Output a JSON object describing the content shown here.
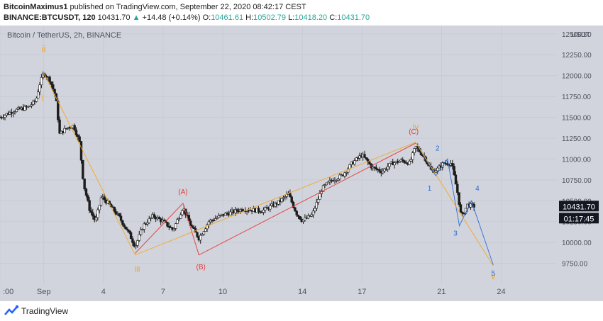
{
  "header": {
    "author": "BitcoinMaximus1",
    "published": "published on TradingView.com, September 22, 2020 08:42:17 CEST",
    "symbol": "BINANCE:BTCUSDT, 120",
    "last": "10431.70",
    "arrow": "▲",
    "change": "+14.48 (+0.14%)",
    "o_label": "O:",
    "o_val": "10461.61",
    "h_label": "H:",
    "h_val": "10502.79",
    "l_label": "L:",
    "l_val": "10418.20",
    "c_label": "C:",
    "c_val": "10431.70"
  },
  "footer": {
    "brand": "TradingView"
  },
  "colors": {
    "background": "#d1d4dc",
    "candle": "#1c1c1c",
    "orange": "#f5a623",
    "red": "#e53935",
    "blue": "#2b6cd4",
    "price_tag": "#131722"
  },
  "chart_data": {
    "type": "candlestick",
    "title": "Bitcoin / TetherUS, 2h, BINANCE",
    "currency": "USDT",
    "ylim": [
      9500,
      12600
    ],
    "y_ticks": [
      9750,
      10000,
      10250,
      10500,
      10750,
      11000,
      11250,
      11500,
      11750,
      12000,
      12250,
      12500
    ],
    "y_tick_labels": [
      "9750.00",
      "10000.00",
      "10250.00",
      "10500.00",
      "10750.00",
      "11000.00",
      "11250.00",
      "11500.00",
      "11750.00",
      "12000.00",
      "12250.00",
      "12500.00"
    ],
    "x_ticks": [
      {
        "label": ":00",
        "day": -1.2
      },
      {
        "label": "Sep",
        "day": 1
      },
      {
        "label": "4",
        "day": 4
      },
      {
        "label": "7",
        "day": 7
      },
      {
        "label": "10",
        "day": 10
      },
      {
        "label": "14",
        "day": 14
      },
      {
        "label": "17",
        "day": 17
      },
      {
        "label": "21",
        "day": 21
      },
      {
        "label": "24",
        "day": 24
      }
    ],
    "last_price": "10431.70",
    "countdown": "01:17:45",
    "price_path": [
      {
        "d": -1.2,
        "p": 11500
      },
      {
        "d": -0.5,
        "p": 11580
      },
      {
        "d": 0.2,
        "p": 11620
      },
      {
        "d": 0.6,
        "p": 11700
      },
      {
        "d": 0.8,
        "p": 11900
      },
      {
        "d": 1.0,
        "p": 12030
      },
      {
        "d": 1.3,
        "p": 11950
      },
      {
        "d": 1.6,
        "p": 11750
      },
      {
        "d": 1.8,
        "p": 11300
      },
      {
        "d": 2.2,
        "p": 11380
      },
      {
        "d": 2.5,
        "p": 11400
      },
      {
        "d": 2.8,
        "p": 11200
      },
      {
        "d": 3.0,
        "p": 10700
      },
      {
        "d": 3.3,
        "p": 10400
      },
      {
        "d": 3.6,
        "p": 10250
      },
      {
        "d": 3.9,
        "p": 10550
      },
      {
        "d": 4.3,
        "p": 10450
      },
      {
        "d": 4.8,
        "p": 10300
      },
      {
        "d": 5.3,
        "p": 10100
      },
      {
        "d": 5.6,
        "p": 9950
      },
      {
        "d": 6.0,
        "p": 10200
      },
      {
        "d": 6.5,
        "p": 10320
      },
      {
        "d": 7.0,
        "p": 10250
      },
      {
        "d": 7.5,
        "p": 10150
      },
      {
        "d": 8.0,
        "p": 10420
      },
      {
        "d": 8.4,
        "p": 10200
      },
      {
        "d": 8.8,
        "p": 10050
      },
      {
        "d": 9.3,
        "p": 10250
      },
      {
        "d": 10.0,
        "p": 10330
      },
      {
        "d": 11.0,
        "p": 10400
      },
      {
        "d": 12.0,
        "p": 10380
      },
      {
        "d": 12.8,
        "p": 10480
      },
      {
        "d": 13.3,
        "p": 10580
      },
      {
        "d": 13.7,
        "p": 10350
      },
      {
        "d": 14.0,
        "p": 10260
      },
      {
        "d": 14.5,
        "p": 10330
      },
      {
        "d": 15.0,
        "p": 10650
      },
      {
        "d": 15.5,
        "p": 10750
      },
      {
        "d": 16.0,
        "p": 10800
      },
      {
        "d": 16.5,
        "p": 10950
      },
      {
        "d": 17.0,
        "p": 11050
      },
      {
        "d": 17.5,
        "p": 10900
      },
      {
        "d": 18.0,
        "p": 10850
      },
      {
        "d": 18.5,
        "p": 10950
      },
      {
        "d": 19.0,
        "p": 10980
      },
      {
        "d": 19.4,
        "p": 10950
      },
      {
        "d": 19.7,
        "p": 11150
      },
      {
        "d": 20.2,
        "p": 11000
      },
      {
        "d": 20.5,
        "p": 10850
      },
      {
        "d": 20.8,
        "p": 10880
      },
      {
        "d": 21.1,
        "p": 10950
      },
      {
        "d": 21.5,
        "p": 10950
      },
      {
        "d": 21.8,
        "p": 10600
      },
      {
        "d": 22.0,
        "p": 10300
      },
      {
        "d": 22.3,
        "p": 10450
      },
      {
        "d": 22.7,
        "p": 10430
      }
    ],
    "waves": [
      {
        "name": "orange",
        "color": "#f5a623",
        "points": [
          {
            "d": 1.0,
            "p": 12030
          },
          {
            "d": 5.6,
            "p": 9850
          },
          {
            "d": 19.7,
            "p": 11200
          }
        ]
      },
      {
        "name": "red",
        "color": "#e53935",
        "points": [
          {
            "d": 5.6,
            "p": 9870
          },
          {
            "d": 8.0,
            "p": 10470
          },
          {
            "d": 8.8,
            "p": 9850
          },
          {
            "d": 19.7,
            "p": 11190
          }
        ]
      },
      {
        "name": "blue",
        "color": "#2b6cd4",
        "points": [
          {
            "d": 19.7,
            "p": 11200
          },
          {
            "d": 20.7,
            "p": 10800
          },
          {
            "d": 21.3,
            "p": 11000
          },
          {
            "d": 21.9,
            "p": 10200
          },
          {
            "d": 22.5,
            "p": 10500
          },
          {
            "d": 23.6,
            "p": 9730
          }
        ]
      },
      {
        "name": "orange-proj",
        "color": "#f5a623",
        "points": [
          {
            "d": 19.7,
            "p": 11200
          },
          {
            "d": 23.6,
            "p": 9720
          }
        ]
      }
    ],
    "labels": [
      {
        "text": "ii",
        "color": "#f5a623",
        "d": 1.0,
        "p": 12280,
        "size": 13
      },
      {
        "text": "i",
        "color": "#f5a623",
        "d": 0.95,
        "p": 11700,
        "size": 12
      },
      {
        "text": "iii",
        "color": "#f5a623",
        "d": 5.7,
        "p": 9650,
        "size": 12
      },
      {
        "text": "iv",
        "color": "#f5a623",
        "d": 19.7,
        "p": 11350,
        "size": 12
      },
      {
        "text": "v",
        "color": "#f5a623",
        "d": 23.6,
        "p": 9560,
        "size": 12
      },
      {
        "text": "(A)",
        "color": "#e53935",
        "d": 8.0,
        "p": 10580,
        "size": 10
      },
      {
        "text": "(B)",
        "color": "#e53935",
        "d": 8.9,
        "p": 9680,
        "size": 10
      },
      {
        "text": "(C)",
        "color": "#e53935",
        "d": 19.6,
        "p": 11300,
        "size": 10
      },
      {
        "text": "1",
        "color": "#2b6cd4",
        "d": 20.4,
        "p": 10620,
        "size": 10
      },
      {
        "text": "2",
        "color": "#2b6cd4",
        "d": 20.8,
        "p": 11100,
        "size": 10
      },
      {
        "text": "3",
        "color": "#2b6cd4",
        "d": 21.7,
        "p": 10080,
        "size": 10
      },
      {
        "text": "4",
        "color": "#2b6cd4",
        "d": 22.8,
        "p": 10620,
        "size": 10
      },
      {
        "text": "5",
        "color": "#2b6cd4",
        "d": 23.6,
        "p": 9600,
        "size": 10
      }
    ]
  }
}
